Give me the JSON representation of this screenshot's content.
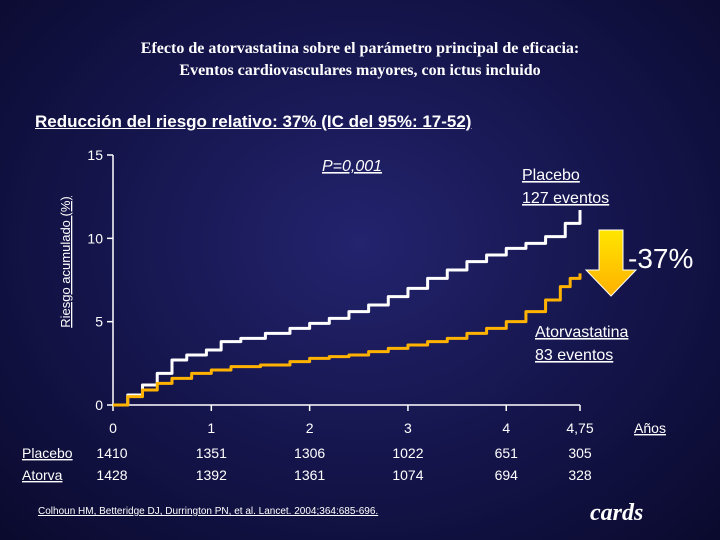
{
  "title": {
    "line1": "Efecto de atorvastatina sobre el parámetro principal de eficacia:",
    "line2": "Eventos cardiovasculares mayores, con ictus incluido"
  },
  "subtitle": "Reducción del riesgo relativo: 37% (IC del 95%: 17-52)",
  "annotation_p": "P=0,001",
  "placebo_label": [
    "Placebo",
    "127 eventos"
  ],
  "atorva_label": [
    "Atorvastatina",
    "83 eventos"
  ],
  "reduction": "-37%",
  "x_unit": "Años",
  "risk_table": {
    "rows": [
      {
        "label": "Placebo",
        "values": [
          "1410",
          "1351",
          "1306",
          "1022",
          "651",
          "305"
        ]
      },
      {
        "label": "Atorva",
        "values": [
          "1428",
          "1392",
          "1361",
          "1074",
          "694",
          "328"
        ]
      }
    ]
  },
  "citation": "Colhoun HM, Betteridge DJ, Durrington PN, et al. Lancet. 2004;364:685-696.",
  "logo": "cards",
  "colors": {
    "placebo": "#ffffff",
    "atorvastatin": "#ffb300",
    "arrow": "#ffe600",
    "background": "#14144a"
  },
  "chart_data": {
    "type": "line",
    "ylabel": "Riesgo acumulado (%)",
    "xlabel": "Años",
    "x_ticks": [
      "0",
      "1",
      "2",
      "3",
      "4",
      "4,75"
    ],
    "x_tick_values": [
      0,
      1,
      2,
      3,
      4,
      4.75
    ],
    "y_ticks": [
      0,
      5,
      10,
      15
    ],
    "ylim": [
      0,
      15
    ],
    "xlim": [
      0,
      4.75
    ],
    "series": [
      {
        "name": "Placebo",
        "color": "#ffffff",
        "points": [
          [
            0,
            0
          ],
          [
            0.15,
            0.6
          ],
          [
            0.3,
            1.2
          ],
          [
            0.45,
            1.9
          ],
          [
            0.6,
            2.7
          ],
          [
            0.75,
            3.0
          ],
          [
            0.95,
            3.3
          ],
          [
            1.1,
            3.8
          ],
          [
            1.3,
            4.0
          ],
          [
            1.55,
            4.3
          ],
          [
            1.8,
            4.6
          ],
          [
            2.0,
            4.9
          ],
          [
            2.2,
            5.2
          ],
          [
            2.4,
            5.6
          ],
          [
            2.6,
            6.0
          ],
          [
            2.8,
            6.5
          ],
          [
            3.0,
            7.0
          ],
          [
            3.2,
            7.6
          ],
          [
            3.4,
            8.1
          ],
          [
            3.6,
            8.6
          ],
          [
            3.8,
            9.0
          ],
          [
            4.0,
            9.4
          ],
          [
            4.2,
            9.7
          ],
          [
            4.4,
            10.1
          ],
          [
            4.6,
            10.9
          ],
          [
            4.75,
            11.7
          ]
        ]
      },
      {
        "name": "Atorvastatina",
        "color": "#ffb300",
        "points": [
          [
            0,
            0
          ],
          [
            0.15,
            0.5
          ],
          [
            0.3,
            0.9
          ],
          [
            0.45,
            1.3
          ],
          [
            0.6,
            1.6
          ],
          [
            0.8,
            1.9
          ],
          [
            1.0,
            2.1
          ],
          [
            1.2,
            2.3
          ],
          [
            1.5,
            2.4
          ],
          [
            1.8,
            2.6
          ],
          [
            2.0,
            2.8
          ],
          [
            2.2,
            2.9
          ],
          [
            2.4,
            3.0
          ],
          [
            2.6,
            3.2
          ],
          [
            2.8,
            3.4
          ],
          [
            3.0,
            3.6
          ],
          [
            3.2,
            3.8
          ],
          [
            3.4,
            4.0
          ],
          [
            3.6,
            4.3
          ],
          [
            3.8,
            4.6
          ],
          [
            4.0,
            5.0
          ],
          [
            4.2,
            5.6
          ],
          [
            4.4,
            6.3
          ],
          [
            4.55,
            7.1
          ],
          [
            4.65,
            7.6
          ],
          [
            4.75,
            7.9
          ]
        ]
      }
    ]
  }
}
